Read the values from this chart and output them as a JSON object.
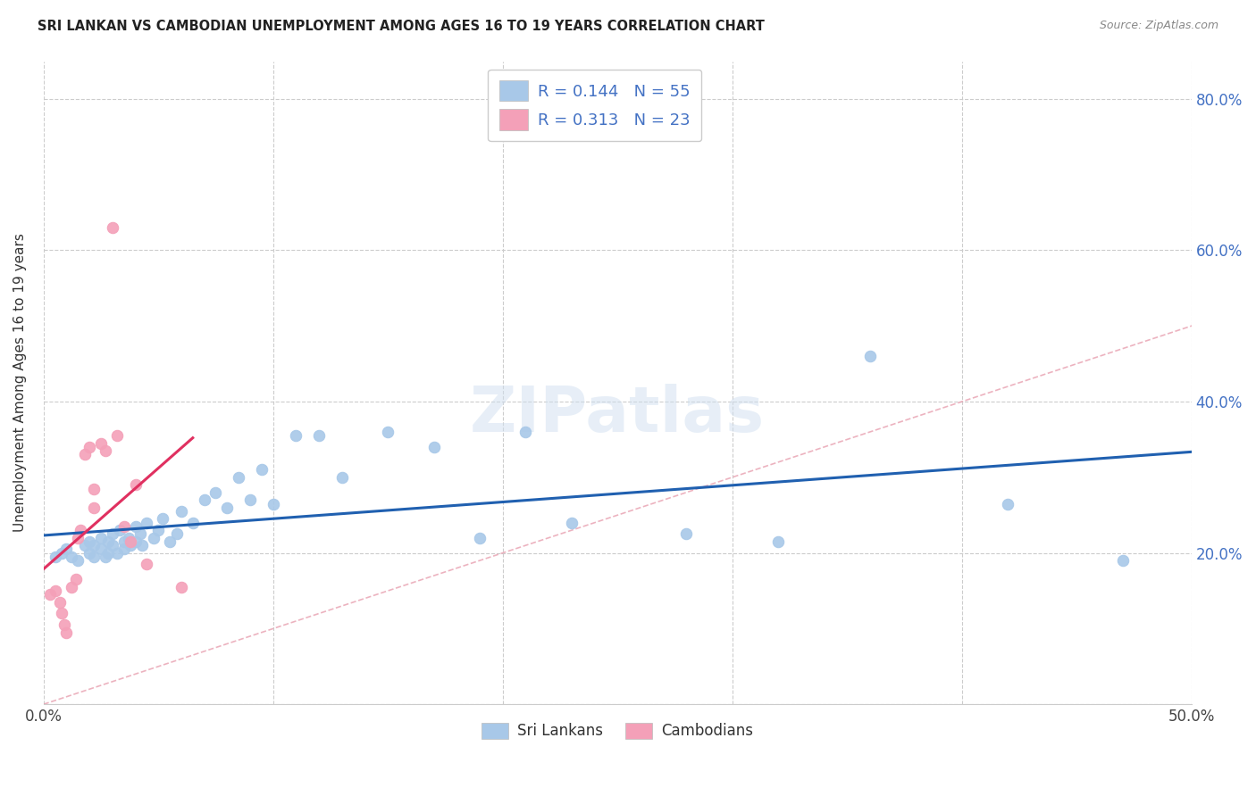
{
  "title": "SRI LANKAN VS CAMBODIAN UNEMPLOYMENT AMONG AGES 16 TO 19 YEARS CORRELATION CHART",
  "source": "Source: ZipAtlas.com",
  "ylabel": "Unemployment Among Ages 16 to 19 years",
  "xlim": [
    0.0,
    0.5
  ],
  "ylim": [
    0.0,
    0.85
  ],
  "sri_lankan_color": "#a8c8e8",
  "cambodian_color": "#f4a0b8",
  "trend_sri_color": "#2060b0",
  "trend_cam_color": "#e03060",
  "diagonal_color": "#e8a0b0",
  "legend_r1": "R = 0.144",
  "legend_n1": "N = 55",
  "legend_r2": "R = 0.313",
  "legend_n2": "N = 23",
  "sri_lankans_label": "Sri Lankans",
  "cambodians_label": "Cambodians",
  "sri_x": [
    0.005,
    0.008,
    0.01,
    0.012,
    0.015,
    0.018,
    0.02,
    0.02,
    0.022,
    0.022,
    0.025,
    0.025,
    0.027,
    0.028,
    0.028,
    0.03,
    0.03,
    0.032,
    0.033,
    0.035,
    0.035,
    0.037,
    0.038,
    0.04,
    0.04,
    0.042,
    0.043,
    0.045,
    0.048,
    0.05,
    0.052,
    0.055,
    0.058,
    0.06,
    0.065,
    0.07,
    0.075,
    0.08,
    0.085,
    0.09,
    0.095,
    0.1,
    0.11,
    0.12,
    0.13,
    0.15,
    0.17,
    0.19,
    0.21,
    0.23,
    0.28,
    0.32,
    0.36,
    0.42,
    0.47
  ],
  "sri_y": [
    0.195,
    0.2,
    0.205,
    0.195,
    0.19,
    0.21,
    0.215,
    0.2,
    0.195,
    0.21,
    0.22,
    0.205,
    0.195,
    0.215,
    0.2,
    0.225,
    0.21,
    0.2,
    0.23,
    0.215,
    0.205,
    0.22,
    0.21,
    0.235,
    0.215,
    0.225,
    0.21,
    0.24,
    0.22,
    0.23,
    0.245,
    0.215,
    0.225,
    0.255,
    0.24,
    0.27,
    0.28,
    0.26,
    0.3,
    0.27,
    0.31,
    0.265,
    0.355,
    0.355,
    0.3,
    0.36,
    0.34,
    0.22,
    0.36,
    0.24,
    0.225,
    0.215,
    0.46,
    0.265,
    0.19
  ],
  "cam_x": [
    0.003,
    0.005,
    0.007,
    0.008,
    0.009,
    0.01,
    0.012,
    0.014,
    0.015,
    0.016,
    0.018,
    0.02,
    0.022,
    0.022,
    0.025,
    0.027,
    0.03,
    0.032,
    0.035,
    0.038,
    0.04,
    0.045,
    0.06
  ],
  "cam_y": [
    0.145,
    0.15,
    0.135,
    0.12,
    0.105,
    0.095,
    0.155,
    0.165,
    0.22,
    0.23,
    0.33,
    0.34,
    0.26,
    0.285,
    0.345,
    0.335,
    0.63,
    0.355,
    0.235,
    0.215,
    0.29,
    0.185,
    0.155
  ]
}
